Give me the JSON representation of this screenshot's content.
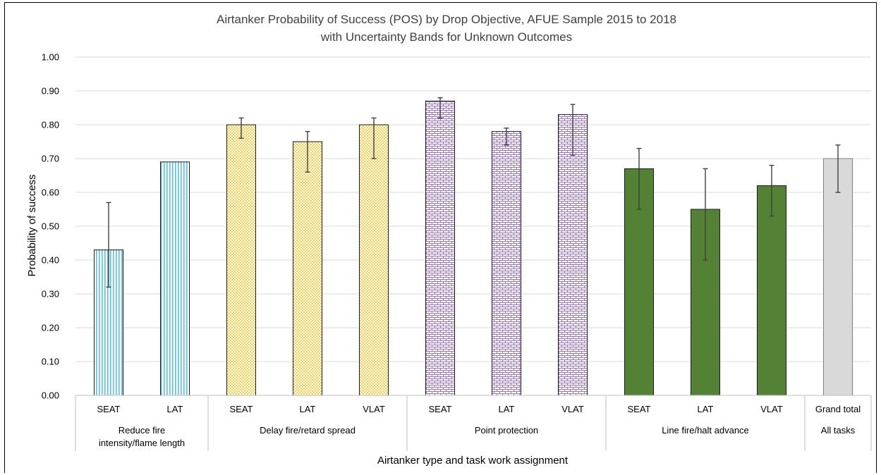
{
  "chart_data": {
    "type": "bar",
    "title": "Airtanker Probability of Success (POS) by Drop Objective, AFUE Sample 2015 to 2018",
    "subtitle": "with Uncertainty Bands for Unknown Outcomes",
    "xlabel": "Airtanker type and task work assignment",
    "ylabel": "Probability of success",
    "ylim": [
      0,
      1.0
    ],
    "yticks": [
      "0.00",
      "0.10",
      "0.20",
      "0.30",
      "0.40",
      "0.50",
      "0.60",
      "0.70",
      "0.80",
      "0.90",
      "1.00"
    ],
    "grid": true,
    "groups": [
      {
        "name": "Reduce fire intensity/flame length",
        "lines": [
          "Reduce fire",
          "intensity/flame length"
        ],
        "count": 2
      },
      {
        "name": "Delay fire/retard spread",
        "lines": [
          "Delay fire/retard spread"
        ],
        "count": 3
      },
      {
        "name": "Point protection",
        "lines": [
          "Point protection"
        ],
        "count": 3
      },
      {
        "name": "Line fire/halt advance",
        "lines": [
          "Line fire/halt advance"
        ],
        "count": 3
      },
      {
        "name": "Grand total",
        "lines": [
          "All tasks"
        ],
        "count": 1
      }
    ],
    "bars": [
      {
        "category": "SEAT",
        "value": 0.43,
        "low": 0.32,
        "high": 0.57,
        "pattern": "vlines"
      },
      {
        "category": "LAT",
        "value": 0.69,
        "low": 0.69,
        "high": 0.69,
        "pattern": "vlines"
      },
      {
        "category": "SEAT",
        "value": 0.8,
        "low": 0.76,
        "high": 0.82,
        "pattern": "checker"
      },
      {
        "category": "LAT",
        "value": 0.75,
        "low": 0.66,
        "high": 0.78,
        "pattern": "checker"
      },
      {
        "category": "VLAT",
        "value": 0.8,
        "low": 0.7,
        "high": 0.82,
        "pattern": "checker"
      },
      {
        "category": "SEAT",
        "value": 0.87,
        "low": 0.82,
        "high": 0.88,
        "pattern": "brick"
      },
      {
        "category": "LAT",
        "value": 0.78,
        "low": 0.74,
        "high": 0.79,
        "pattern": "brick"
      },
      {
        "category": "VLAT",
        "value": 0.83,
        "low": 0.71,
        "high": 0.86,
        "pattern": "brick"
      },
      {
        "category": "SEAT",
        "value": 0.67,
        "low": 0.55,
        "high": 0.73,
        "pattern": "solid-green"
      },
      {
        "category": "LAT",
        "value": 0.55,
        "low": 0.4,
        "high": 0.67,
        "pattern": "solid-green"
      },
      {
        "category": "VLAT",
        "value": 0.62,
        "low": 0.53,
        "high": 0.68,
        "pattern": "solid-green"
      },
      {
        "category": "Grand total",
        "value": 0.7,
        "low": 0.6,
        "high": 0.74,
        "pattern": "solid-gray"
      }
    ],
    "colors": {
      "vlines": "#5bc0e0",
      "checker": "#f7cf4a",
      "brick": "#9a72c6",
      "solid-green": "#548235",
      "solid-gray": "#d9d9d9",
      "grid": "#d9d9d9",
      "errorbar": "#404040"
    }
  }
}
